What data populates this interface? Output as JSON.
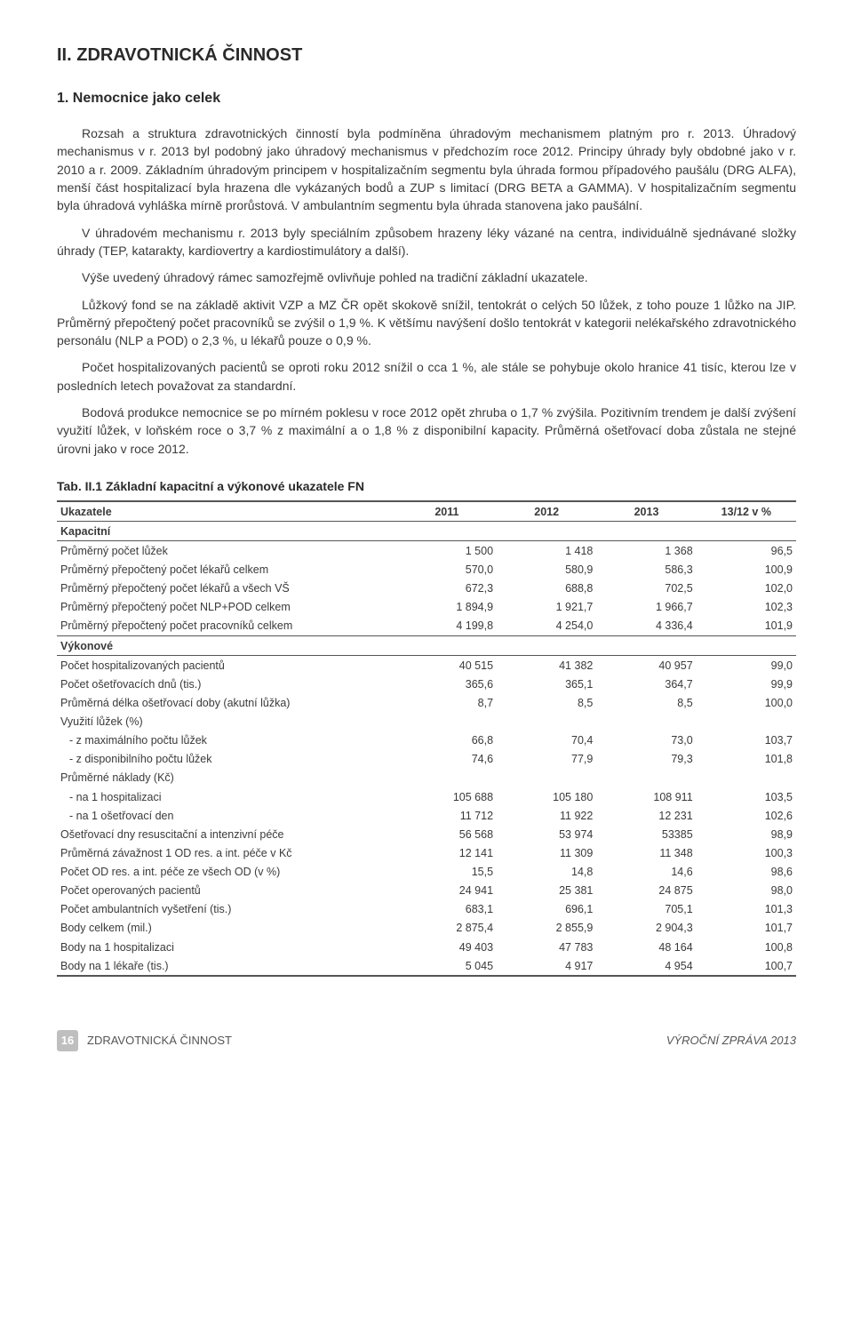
{
  "heading_main": "II. ZDRAVOTNICKÁ ČINNOST",
  "heading_sub": "1. Nemocnice jako celek",
  "paragraphs": [
    "Rozsah a struktura zdravotnických činností byla podmíněna úhradovým mechanismem platným pro r. 2013. Úhradový mechanismus v r. 2013 byl podobný jako úhradový mechanismus v předchozím roce 2012. Principy úhrady byly obdobné jako v r. 2010 a r. 2009. Základním úhradovým principem v hospitalizačním segmentu byla úhrada formou případového paušálu (DRG ALFA), menší část hospitalizací byla hrazena dle vykázaných bodů a ZUP s limitací (DRG BETA a GAMMA). V hospitalizačním segmentu byla úhradová vyhláška mírně prorůstová. V ambulantním segmentu byla úhrada stanovena jako paušální.",
    "V úhradovém mechanismu r. 2013 byly speciálním způsobem hrazeny léky vázané na centra, individuálně sjednávané složky úhrady (TEP, katarakty, kardiovertry a kardiostimulátory a další).",
    "Výše uvedený úhradový rámec samozřejmě ovlivňuje pohled na tradiční základní ukazatele.",
    "Lůžkový fond se na základě aktivit VZP a MZ ČR opět skokově snížil, tentokrát o celých 50 lůžek, z toho pouze 1 lůžko na JIP. Průměrný přepočtený počet pracovníků se zvýšil o 1,9 %. K většímu navýšení došlo tentokrát v kategorii nelékařského zdravotnického personálu (NLP a POD) o 2,3 %, u lékařů pouze o 0,9 %.",
    "Počet hospitalizovaných pacientů se oproti roku 2012 snížil o cca 1 %, ale stále se pohybuje okolo hranice 41 tisíc, kterou lze v posledních letech považovat za standardní.",
    "Bodová produkce nemocnice se po mírném poklesu v roce 2012 opět zhruba o 1,7 % zvýšila. Pozitivním trendem je další zvýšení využití lůžek, v loňském roce o 3,7 % z maximální a o 1,8 % z disponibilní kapacity. Průměrná ošetřovací doba zůstala ne stejné úrovni jako v roce 2012."
  ],
  "table": {
    "title": "Tab. II.1 Základní kapacitní a výkonové ukazatele FN",
    "columns": [
      "Ukazatele",
      "2011",
      "2012",
      "2013",
      "13/12 v %"
    ],
    "col_widths": [
      "46%",
      "13.5%",
      "13.5%",
      "13.5%",
      "13.5%"
    ],
    "rows": [
      {
        "type": "section",
        "label": "Kapacitní"
      },
      {
        "label": "Průměrný počet lůžek",
        "v": [
          "1 500",
          "1 418",
          "1 368",
          "96,5"
        ]
      },
      {
        "label": "Průměrný přepočtený počet lékařů celkem",
        "v": [
          "570,0",
          "580,9",
          "586,3",
          "100,9"
        ]
      },
      {
        "label": "Průměrný přepočtený počet lékařů a všech VŠ",
        "v": [
          "672,3",
          "688,8",
          "702,5",
          "102,0"
        ]
      },
      {
        "label": "Průměrný přepočtený počet NLP+POD celkem",
        "v": [
          "1 894,9",
          "1 921,7",
          "1 966,7",
          "102,3"
        ]
      },
      {
        "label": "Průměrný přepočtený počet pracovníků celkem",
        "v": [
          "4 199,8",
          "4 254,0",
          "4 336,4",
          "101,9"
        ]
      },
      {
        "type": "section",
        "label": "Výkonové"
      },
      {
        "label": "Počet hospitalizovaných pacientů",
        "v": [
          "40 515",
          "41 382",
          "40 957",
          "99,0"
        ]
      },
      {
        "label": "Počet ošetřovacích dnů (tis.)",
        "v": [
          "365,6",
          "365,1",
          "364,7",
          "99,9"
        ]
      },
      {
        "label": "Průměrná délka ošetřovací doby (akutní lůžka)",
        "v": [
          "8,7",
          "8,5",
          "8,5",
          "100,0"
        ]
      },
      {
        "type": "plain",
        "label": "Využití lůžek (%)"
      },
      {
        "label": " - z maximálního počtu lůžek",
        "indent": true,
        "v": [
          "66,8",
          "70,4",
          "73,0",
          "103,7"
        ]
      },
      {
        "label": " - z disponibilního počtu lůžek",
        "indent": true,
        "v": [
          "74,6",
          "77,9",
          "79,3",
          "101,8"
        ]
      },
      {
        "type": "plain",
        "label": "Průměrné náklady (Kč)"
      },
      {
        "label": " - na 1 hospitalizaci",
        "indent": true,
        "v": [
          "105 688",
          "105 180",
          "108 911",
          "103,5"
        ]
      },
      {
        "label": " - na 1 ošetřovací den",
        "indent": true,
        "v": [
          "11 712",
          "11 922",
          "12 231",
          "102,6"
        ]
      },
      {
        "label": "Ošetřovací dny resuscitační a intenzivní péče",
        "v": [
          "56 568",
          "53 974",
          "53385",
          "98,9"
        ]
      },
      {
        "label": "Průměrná závažnost 1 OD res. a int. péče v Kč",
        "v": [
          "12 141",
          "11 309",
          "11 348",
          "100,3"
        ]
      },
      {
        "label": "Počet OD res. a int. péče ze všech OD (v %)",
        "v": [
          "15,5",
          "14,8",
          "14,6",
          "98,6"
        ]
      },
      {
        "label": "Počet operovaných pacientů",
        "v": [
          "24 941",
          "25 381",
          "24 875",
          "98,0"
        ]
      },
      {
        "label": "Počet ambulantních vyšetření (tis.)",
        "v": [
          "683,1",
          "696,1",
          "705,1",
          "101,3"
        ]
      },
      {
        "label": "Body celkem (mil.)",
        "v": [
          "2 875,4",
          "2 855,9",
          "2 904,3",
          "101,7"
        ]
      },
      {
        "label": "Body na 1 hospitalizaci",
        "v": [
          "49 403",
          "47 783",
          "48 164",
          "100,8"
        ]
      },
      {
        "label": "Body na 1 lékaře (tis.)",
        "v": [
          "5 045",
          "4 917",
          "4 954",
          "100,7"
        ]
      }
    ]
  },
  "footer": {
    "page_number": "16",
    "left_text": "ZDRAVOTNICKÁ ČINNOST",
    "right_text": "VÝROČNÍ ZPRÁVA 2013"
  }
}
